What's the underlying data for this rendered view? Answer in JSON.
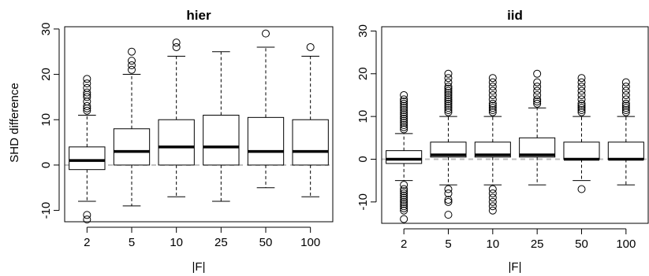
{
  "chart_data": [
    {
      "type": "boxplot",
      "title": "hier",
      "xlabel": "|F|",
      "ylabel": "SHD difference",
      "categories": [
        "2",
        "5",
        "10",
        "25",
        "50",
        "100"
      ],
      "ylim": [
        -12.5,
        30.5
      ],
      "yticks": [
        -10,
        0,
        10,
        20,
        30
      ],
      "grid": false,
      "reference_line": 0,
      "boxes": [
        {
          "whisker_low": -8,
          "q1": -1,
          "median": 1,
          "q3": 4,
          "whisker_high": 11,
          "outliers": [
            -11,
            -12,
            12,
            12.5,
            13,
            14,
            15,
            15.5,
            16,
            17,
            18,
            19
          ]
        },
        {
          "whisker_low": -9,
          "q1": 0,
          "median": 3,
          "q3": 8,
          "whisker_high": 20,
          "outliers": [
            21,
            22,
            23,
            25
          ]
        },
        {
          "whisker_low": -7,
          "q1": 0,
          "median": 4,
          "q3": 10,
          "whisker_high": 24,
          "outliers": [
            26,
            27
          ]
        },
        {
          "whisker_low": -8,
          "q1": 0,
          "median": 4,
          "q3": 11,
          "whisker_high": 25,
          "outliers": []
        },
        {
          "whisker_low": -5,
          "q1": 0,
          "median": 3,
          "q3": 10.5,
          "whisker_high": 26,
          "outliers": [
            29
          ]
        },
        {
          "whisker_low": -7,
          "q1": 0,
          "median": 3,
          "q3": 10,
          "whisker_high": 24,
          "outliers": [
            26
          ]
        }
      ]
    },
    {
      "type": "boxplot",
      "title": "iid",
      "xlabel": "|F|",
      "ylabel": "",
      "categories": [
        "2",
        "5",
        "10",
        "25",
        "50",
        "100"
      ],
      "ylim": [
        -15,
        31
      ],
      "yticks": [
        -10,
        0,
        10,
        20,
        30
      ],
      "grid": false,
      "reference_line": 0,
      "boxes": [
        {
          "whisker_low": -5,
          "q1": -1,
          "median": 0,
          "q3": 2,
          "whisker_high": 6,
          "outliers": [
            -6,
            -7,
            -7.5,
            -8,
            -8.5,
            -9,
            -9.5,
            -10,
            -10.5,
            -11,
            -11.5,
            -12,
            -14,
            7,
            7.5,
            8,
            8.5,
            9,
            9.5,
            10,
            10.5,
            11,
            11.5,
            12,
            12.5,
            13,
            13.5,
            14,
            15
          ]
        },
        {
          "whisker_low": -6,
          "q1": 0.5,
          "median": 1,
          "q3": 4,
          "whisker_high": 10,
          "outliers": [
            -7,
            -8,
            -9.5,
            -10,
            -13,
            11,
            11.5,
            12,
            12.5,
            13,
            13.5,
            14,
            14.5,
            15,
            15.5,
            16,
            16.5,
            17,
            18,
            19,
            20
          ]
        },
        {
          "whisker_low": -6,
          "q1": 0.5,
          "median": 1,
          "q3": 4,
          "whisker_high": 10,
          "outliers": [
            -7,
            -8,
            -9,
            -10,
            -11,
            -12,
            11,
            11.5,
            12,
            12.5,
            13,
            14,
            15,
            16,
            17,
            18,
            19
          ]
        },
        {
          "whisker_low": -6,
          "q1": 0.5,
          "median": 1,
          "q3": 5,
          "whisker_high": 12,
          "outliers": [
            13,
            13.5,
            14,
            15,
            16,
            17,
            18,
            20
          ]
        },
        {
          "whisker_low": -5,
          "q1": 0,
          "median": 0,
          "q3": 4,
          "whisker_high": 10,
          "outliers": [
            -7,
            11,
            11.5,
            12,
            12.5,
            13,
            14,
            15,
            16,
            17,
            18,
            19
          ]
        },
        {
          "whisker_low": -6,
          "q1": 0,
          "median": 0,
          "q3": 4,
          "whisker_high": 10,
          "outliers": [
            11,
            11.5,
            12,
            12.5,
            13,
            14,
            15,
            16,
            17,
            18
          ]
        }
      ]
    }
  ]
}
